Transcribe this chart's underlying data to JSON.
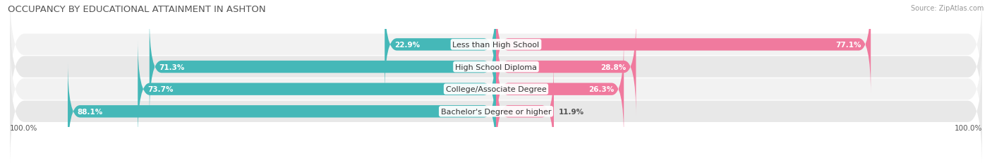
{
  "title": "OCCUPANCY BY EDUCATIONAL ATTAINMENT IN ASHTON",
  "source": "Source: ZipAtlas.com",
  "categories": [
    "Less than High School",
    "High School Diploma",
    "College/Associate Degree",
    "Bachelor's Degree or higher"
  ],
  "owner_pct": [
    22.9,
    71.3,
    73.7,
    88.1
  ],
  "renter_pct": [
    77.1,
    28.8,
    26.3,
    11.9
  ],
  "owner_color": "#45b8b8",
  "renter_color": "#f07a9e",
  "row_bg_even": "#f2f2f2",
  "row_bg_odd": "#e8e8e8",
  "title_fontsize": 9.5,
  "label_fontsize": 8.0,
  "pct_fontsize": 7.5,
  "tick_fontsize": 7.5,
  "source_fontsize": 7.0,
  "legend_fontsize": 8.0,
  "axis_label_left": "100.0%",
  "axis_label_right": "100.0%"
}
